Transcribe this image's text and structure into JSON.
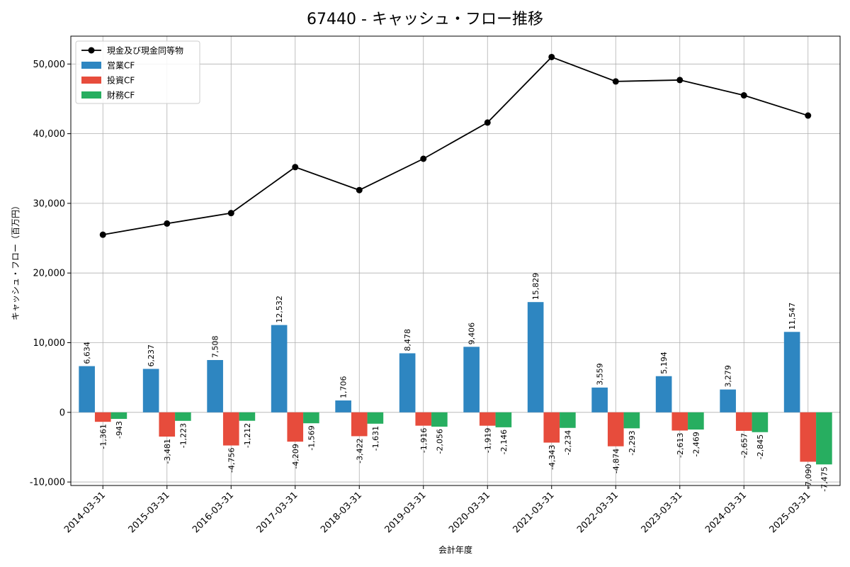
{
  "chart_data": {
    "type": "bar",
    "title": "67440 - キャッシュ・フロー推移",
    "xlabel": "会計年度",
    "ylabel": "キャッシュ・フロー（百万円）",
    "ylim": [
      -10500,
      54000
    ],
    "yticks": [
      -10000,
      0,
      10000,
      20000,
      30000,
      40000,
      50000
    ],
    "ytick_labels": [
      "-10,000",
      "0",
      "10,000",
      "20,000",
      "30,000",
      "40,000",
      "50,000"
    ],
    "grid": true,
    "legend_position": "top-left",
    "categories": [
      "2014-03-31",
      "2015-03-31",
      "2016-03-31",
      "2017-03-31",
      "2018-03-31",
      "2019-03-31",
      "2020-03-31",
      "2021-03-31",
      "2022-03-31",
      "2023-03-31",
      "2024-03-31",
      "2025-03-31"
    ],
    "series": [
      {
        "name": "営業CF",
        "kind": "bar",
        "color": "#2e86c1",
        "values": [
          6634,
          6237,
          7508,
          12532,
          1706,
          8478,
          9406,
          15829,
          3559,
          5194,
          3279,
          11547
        ],
        "labels": [
          "6,634",
          "6,237",
          "7,508",
          "12,532",
          "1,706",
          "8,478",
          "9,406",
          "15,829",
          "3,559",
          "5,194",
          "3,279",
          "11,547"
        ]
      },
      {
        "name": "投資CF",
        "kind": "bar",
        "color": "#e74c3c",
        "values": [
          -1361,
          -3481,
          -4756,
          -4209,
          -3422,
          -1916,
          -1919,
          -4343,
          -4874,
          -2613,
          -2657,
          -7090
        ],
        "labels": [
          "-1,361",
          "-3,481",
          "-4,756",
          "-4,209",
          "-3,422",
          "-1,916",
          "-1,919",
          "-4,343",
          "-4,874",
          "-2,613",
          "-2,657",
          "-7,090"
        ]
      },
      {
        "name": "財務CF",
        "kind": "bar",
        "color": "#27ae60",
        "values": [
          -943,
          -1223,
          -1212,
          -1569,
          -1631,
          -2056,
          -2146,
          -2234,
          -2293,
          -2469,
          -2845,
          -7475
        ],
        "labels": [
          "-943",
          "-1,223",
          "-1,212",
          "-1,569",
          "-1,631",
          "-2,056",
          "-2,146",
          "-2,234",
          "-2,293",
          "-2,469",
          "-2,845",
          "-7,475"
        ]
      },
      {
        "name": "現金及び現金同等物",
        "kind": "line",
        "color": "#000000",
        "values": [
          25500,
          27100,
          28600,
          35200,
          31900,
          36400,
          41600,
          51000,
          47500,
          47700,
          45500,
          42600
        ]
      }
    ]
  }
}
